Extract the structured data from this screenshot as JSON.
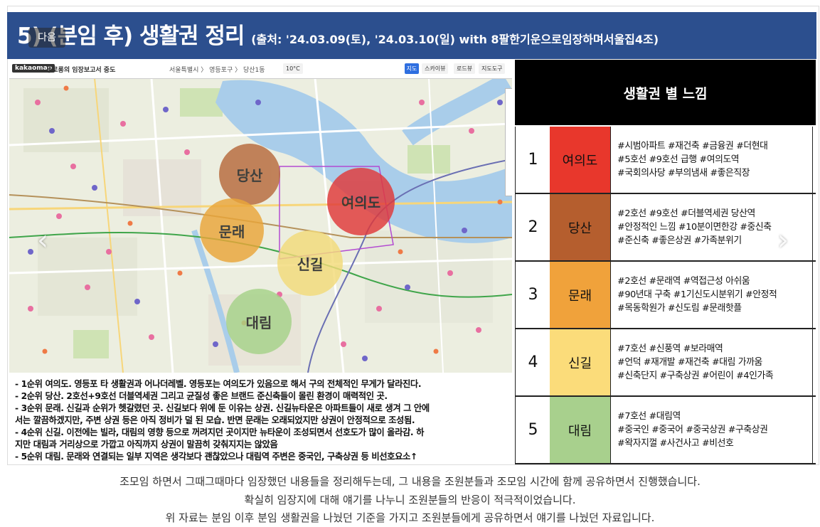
{
  "slide": {
    "badge": "다음",
    "title_main": "5) (분임 후) 생활권 정리",
    "title_source": "(출처: '24.03.09(토), '24.03.10(일) with 8팔한기운으로임장하며서울집4조)"
  },
  "map_toolbar": {
    "logo": "kakaomap",
    "brand": "동로롱의 임장보고서 중도",
    "breadcrumb": "서울특별시 〉 영등포구 〉 당산1동",
    "temp": "10°C",
    "btn_main": "지도",
    "btn_skyview": "스카이뷰",
    "btn_roadview": "로드뷰",
    "btn_more": "지도도구"
  },
  "map_zones": [
    {
      "label": "당산",
      "color": "#b76a3c"
    },
    {
      "label": "여의도",
      "color": "#e0393a"
    },
    {
      "label": "문래",
      "color": "#eaa63a"
    },
    {
      "label": "신길",
      "color": "#f3db7a"
    },
    {
      "label": "대림",
      "color": "#a6d289"
    }
  ],
  "notes": [
    "- 1순위 여의도. 영등포 타 생활권과 어나더레벨. 영등포는 여의도가 있음으로 해서 구의 전체적인 무게가 달라진다.",
    "- 2순위 당산. 2호선+9호선 더블역세권 그리고 균질성 좋은 브랜드 준신축들이 몰린 환경이 매력적인 곳.",
    "- 3순위 문래. 신길과 순위가 헷갈렸던 곳. 신길보다 위에 둔 이유는 상권. 신길뉴타운은 아파트들이 새로 생겨 그 안에",
    "서는 깔끔하겠지만, 주변 상권 등은 아직 정비가 덜 된 모습. 반면 문래는 오래되었지만 상권이 안정적으로 조성됨.",
    "- 4순위 신길. 이전에는 빌라, 대림의 영향 등으로 꺼려지던 곳이지만 뉴타운이 조성되면서 선호도가 많이 올라감. 하",
    "지만 대림과 거리상으로 가깝고 아직까지 상권이 말끔히 갖춰지지는 않았음",
    "- 5순위 대림. 문래와 연결되는 일부 지역은 생각보다 괜찮았으나 대림역 주변은 중국인, 구축상권 등 비선호요소↑"
  ],
  "table": {
    "header": "생활권 별 느낌",
    "rows": [
      {
        "rank": "1",
        "name": "여의도",
        "color": "#e8372c",
        "tags": [
          "#시범아파트 #재건축 #금융권 #더현대",
          "#5호선 #9호선 급행 #여의도역",
          "#국회의사당 #부의냄새 #좋은직장"
        ]
      },
      {
        "rank": "2",
        "name": "당산",
        "color": "#b55e2e",
        "tags": [
          "#2호선 #9호선 #더블역세권 당산역",
          "#안정적인 느낌 #10분이면한강 #중신축",
          "#준신축 #좋은상권 #가족분위기"
        ]
      },
      {
        "rank": "3",
        "name": "문래",
        "color": "#f0a23b",
        "tags": [
          "#2호선 #문래역 #역접근성 아쉬움",
          "#90년대 구축 #1기신도시분위기 #안정적",
          "#목동학원가 #신도림 #문래핫플"
        ]
      },
      {
        "rank": "4",
        "name": "신길",
        "color": "#fbdc7a",
        "tags": [
          "#7호선 #신풍역 #보라매역",
          "#언덕 #재개발 #재건축 #대림 가까움",
          "#신축단지 #구축상권 #어린이 #4인가족"
        ]
      },
      {
        "rank": "5",
        "name": "대림",
        "color": "#a8d08d",
        "tags": [
          "#7호선 #대림역",
          "#중국인 #중국어 #중국상권 #구축상권",
          "#왁자지껄 #사건사고 #비선호"
        ]
      }
    ]
  },
  "captions": [
    "조모임 하면서 그때그때마다 임장했던 내용들을 정리해두는데, 그 내용을 조원분들과 조모임 시간에 함께 공유하면서 진행했습니다.",
    "확실히 임장지에 대해 얘기를 나누니 조원분들의 반응이 적극적이었습니다.",
    "위 자료는 분임 이후 분임 생활권을 나눴던 기준을 가지고 조원분들에게 공유하면서 얘기를 나눴던 자료입니다."
  ]
}
